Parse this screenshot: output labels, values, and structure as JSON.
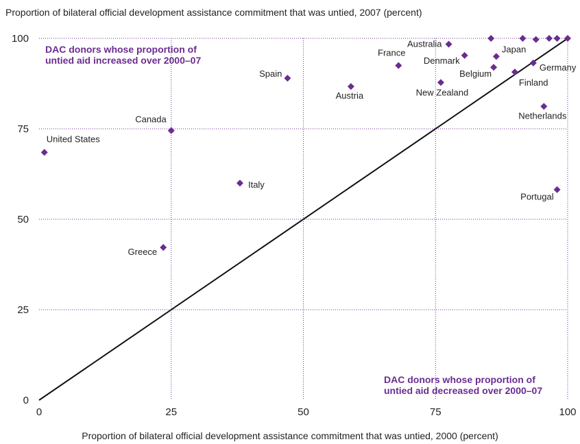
{
  "chart_data": {
    "type": "scatter",
    "title": "",
    "ylabel": "Proportion of bilateral official development assistance commitment that was untied, 2007 (percent)",
    "xlabel": "Proportion of bilateral official development assistance commitment that was untied, 2000 (percent)",
    "xlim": [
      0,
      100
    ],
    "ylim": [
      0,
      100
    ],
    "xticks": [
      0,
      25,
      50,
      75,
      100
    ],
    "yticks": [
      0,
      25,
      50,
      75,
      100
    ],
    "grid": true,
    "reference_line": {
      "from": [
        0,
        0
      ],
      "to": [
        100,
        100
      ]
    },
    "annotations": {
      "top_left": [
        "DAC donors whose proportion of",
        "untied aid increased over 2000–07"
      ],
      "bottom_right": [
        "DAC donors whose proportion of",
        "untied aid decreased over 2000–07"
      ]
    },
    "points": [
      {
        "label": "United States",
        "x": 1,
        "y": 68.5
      },
      {
        "label": "Canada",
        "x": 25,
        "y": 74.5
      },
      {
        "label": "Greece",
        "x": 23.5,
        "y": 42.2
      },
      {
        "label": "Italy",
        "x": 38,
        "y": 60
      },
      {
        "label": "Spain",
        "x": 47,
        "y": 89
      },
      {
        "label": "Austria",
        "x": 59,
        "y": 86.7
      },
      {
        "label": "France",
        "x": 68,
        "y": 92.5
      },
      {
        "label": "Australia",
        "x": 77.5,
        "y": 98.4
      },
      {
        "label": "Denmark",
        "x": 80.5,
        "y": 95.3
      },
      {
        "label": "New Zealand",
        "x": 76,
        "y": 87.8
      },
      {
        "label": "Belgium",
        "x": 86,
        "y": 92
      },
      {
        "label": "Japan",
        "x": 86.5,
        "y": 95
      },
      {
        "label": "Finland",
        "x": 90,
        "y": 90.7
      },
      {
        "label": "Germany",
        "x": 93.5,
        "y": 93.2
      },
      {
        "label": "Netherlands",
        "x": 95.5,
        "y": 81.2
      },
      {
        "label": "Portugal",
        "x": 98,
        "y": 58.2
      },
      {
        "label": "",
        "x": 85.5,
        "y": 100
      },
      {
        "label": "",
        "x": 91.5,
        "y": 100
      },
      {
        "label": "",
        "x": 94,
        "y": 99.7
      },
      {
        "label": "",
        "x": 96.5,
        "y": 100
      },
      {
        "label": "",
        "x": 98,
        "y": 100
      },
      {
        "label": "",
        "x": 100,
        "y": 100
      }
    ],
    "marker_color": "#6b2c91",
    "grid_color": "#6b2c91",
    "line_color": "#111111"
  }
}
